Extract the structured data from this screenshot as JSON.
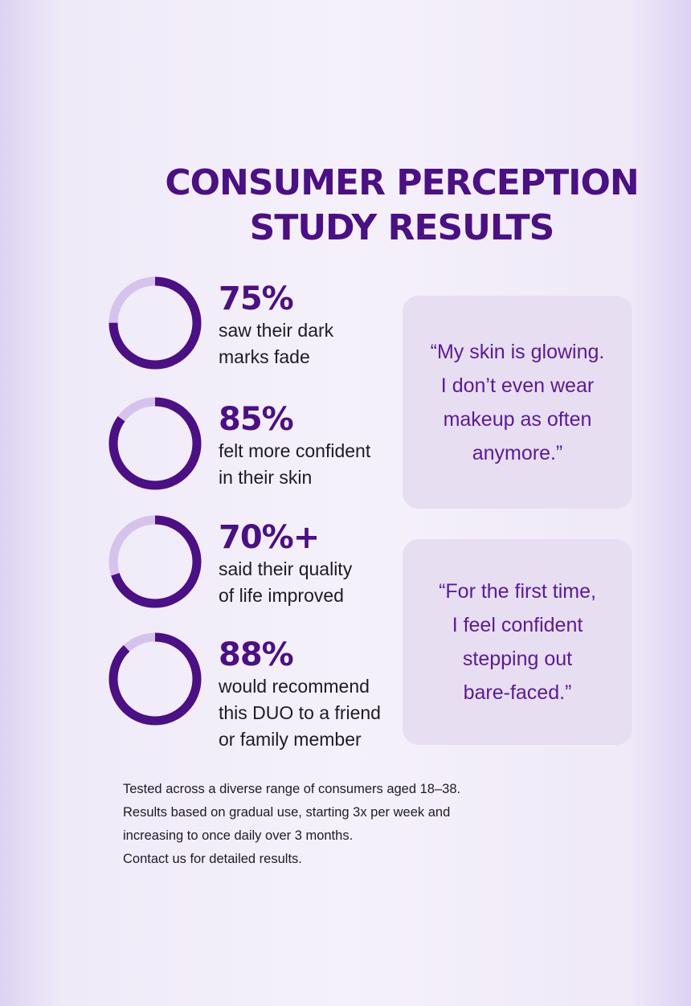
{
  "title": {
    "line1": "CONSUMER PERCEPTION",
    "line2": "STUDY RESULTS"
  },
  "colors": {
    "accent": "#4b0f86",
    "ring_track": "#d6c3ec",
    "quote_bg": "#e7def1",
    "quote_text": "#5b1a98"
  },
  "stats": [
    {
      "percent": "75%",
      "value": 75,
      "desc_line1": "saw their dark",
      "desc_line2": "marks fade",
      "desc_line3": ""
    },
    {
      "percent": "85%",
      "value": 85,
      "desc_line1": "felt more confident",
      "desc_line2": "in their skin",
      "desc_line3": ""
    },
    {
      "percent": "70%+",
      "value": 70,
      "desc_line1": "said their quality",
      "desc_line2": "of life improved",
      "desc_line3": ""
    },
    {
      "percent": "88%",
      "value": 88,
      "desc_line1": "would recommend",
      "desc_line2": "this DUO to a friend",
      "desc_line3": "or family member"
    }
  ],
  "quotes": [
    {
      "line1": "“My skin is glowing.",
      "line2": "I don’t even wear",
      "line3": "makeup as often",
      "line4": "anymore.”"
    },
    {
      "line1": "“For the first time,",
      "line2": "I feel confident",
      "line3": "stepping out",
      "line4": "bare-faced.”"
    }
  ],
  "footnote": {
    "line1": "Tested across a diverse range of consumers aged 18–38.",
    "line2": "Results based on gradual use, starting 3x per week and",
    "line3": "increasing to once daily over 3 months.",
    "line4": "Contact us for detailed results."
  }
}
